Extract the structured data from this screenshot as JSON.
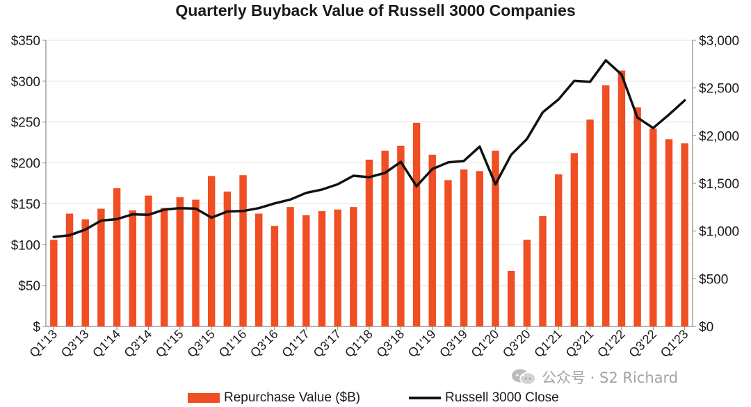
{
  "title": "Quarterly Buyback Value of Russell 3000 Companies",
  "colors": {
    "bar": "#f04e23",
    "line": "#111111",
    "axis": "#888888"
  },
  "chart_data": {
    "type": "bar",
    "title": "Quarterly Buyback Value of Russell 3000 Companies",
    "xlabel": "",
    "ylabel": "",
    "y_left_lim": [
      0,
      350
    ],
    "y_right_lim": [
      0,
      3000
    ],
    "y_left_ticks": [
      "$",
      "$50",
      "$100",
      "$150",
      "$200",
      "$250",
      "$300",
      "$350"
    ],
    "y_right_ticks": [
      "$0",
      "$500",
      "$1,000",
      "$1,500",
      "$2,000",
      "$2,500",
      "$3,000"
    ],
    "grid": true,
    "legend": "bottom",
    "categories": [
      "Q1'13",
      "Q2'13",
      "Q3'13",
      "Q4'13",
      "Q1'14",
      "Q2'14",
      "Q3'14",
      "Q4'14",
      "Q1'15",
      "Q2'15",
      "Q3'15",
      "Q4'15",
      "Q1'16",
      "Q2'16",
      "Q3'16",
      "Q4'16",
      "Q1'17",
      "Q2'17",
      "Q3'17",
      "Q4'17",
      "Q1'18",
      "Q2'18",
      "Q3'18",
      "Q4'18",
      "Q1'19",
      "Q2'19",
      "Q3'19",
      "Q4'19",
      "Q1'20",
      "Q2'20",
      "Q3'20",
      "Q4'20",
      "Q1'21",
      "Q2'21",
      "Q3'21",
      "Q4'21",
      "Q1'22",
      "Q2'22",
      "Q3'22",
      "Q4'22",
      "Q1'23"
    ],
    "tick_labels": [
      "Q1'13",
      "Q3'13",
      "Q1'14",
      "Q3'14",
      "Q1'15",
      "Q3'15",
      "Q1'16",
      "Q3'16",
      "Q1'17",
      "Q3'17",
      "Q1'18",
      "Q3'18",
      "Q1'19",
      "Q3'19",
      "Q1'20",
      "Q3'20",
      "Q1'21",
      "Q3'21",
      "Q1'22",
      "Q3'22",
      "Q1'23"
    ],
    "series": [
      {
        "name": "Repurchase Value ($B)",
        "type": "bar",
        "axis": "left",
        "values": [
          106,
          138,
          131,
          144,
          169,
          142,
          160,
          145,
          158,
          155,
          184,
          165,
          185,
          138,
          123,
          146,
          136,
          141,
          143,
          146,
          204,
          215,
          221,
          249,
          210,
          179,
          192,
          190,
          215,
          68,
          106,
          135,
          186,
          212,
          253,
          295,
          313,
          268,
          242,
          229,
          224
        ]
      },
      {
        "name": "Russell 3000 Close",
        "type": "line",
        "axis": "right",
        "values": [
          938,
          956,
          1015,
          1110,
          1125,
          1175,
          1170,
          1225,
          1240,
          1235,
          1140,
          1205,
          1210,
          1240,
          1290,
          1330,
          1400,
          1435,
          1490,
          1580,
          1565,
          1610,
          1725,
          1470,
          1650,
          1720,
          1735,
          1885,
          1490,
          1800,
          1965,
          2245,
          2380,
          2575,
          2565,
          2790,
          2640,
          2190,
          2080,
          2220,
          2370
        ]
      }
    ]
  },
  "legend": {
    "bar_label": "Repurchase Value ($B)",
    "line_label": "Russell 3000 Close"
  },
  "watermark": "公众号 · S2 Richard"
}
